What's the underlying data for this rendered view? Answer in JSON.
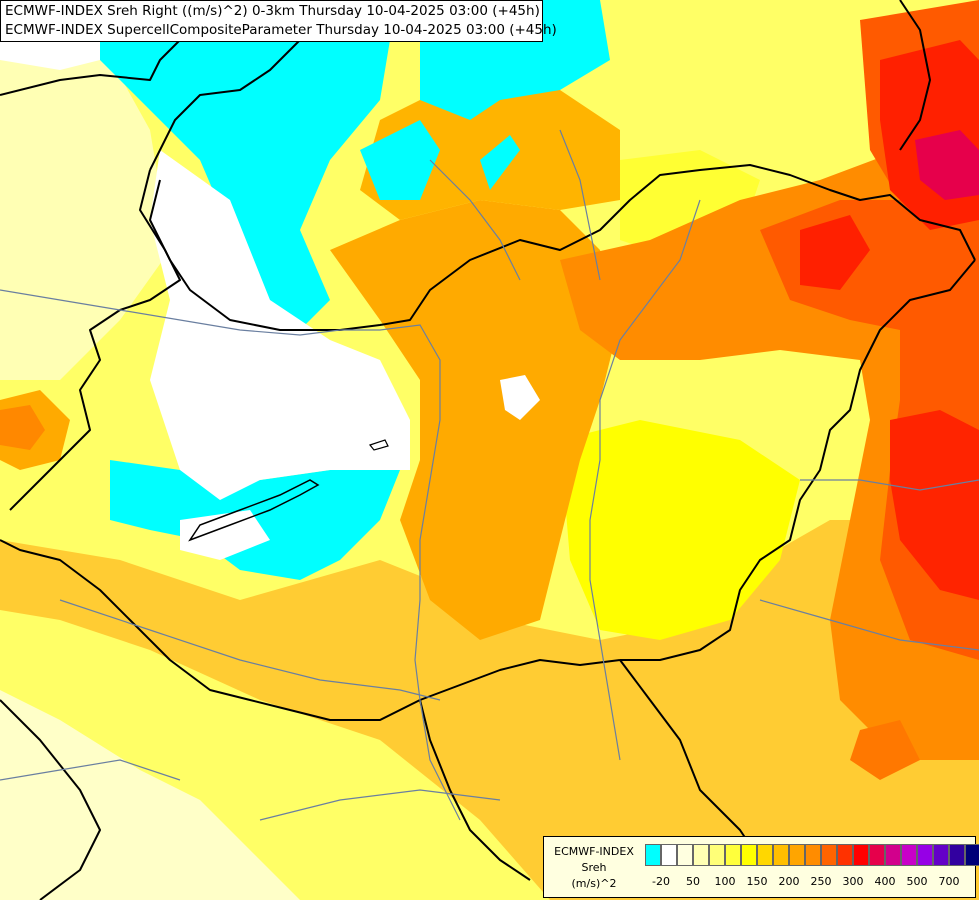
{
  "header": {
    "line1": "ECMWF-INDEX Sreh Right ((m/s)^2) 0-3km Thursday 10-04-2025 03:00 (+45h)",
    "line2": "ECMWF-INDEX SupercellCompositeParameter Thursday 10-04-2025 03:00 (+45h)"
  },
  "legend": {
    "title": "ECMWF-INDEX",
    "param": "Sreh",
    "unit": "(m/s)^2",
    "colors": [
      "#00ffff",
      "#ffffff",
      "#ffffe0",
      "#ffffb4",
      "#ffff78",
      "#ffff3c",
      "#ffff00",
      "#ffd700",
      "#ffbe00",
      "#ffa500",
      "#ff8c00",
      "#ff6400",
      "#ff3200",
      "#ff0000",
      "#e6004b",
      "#d2008c",
      "#c800c8",
      "#9600e6",
      "#6400c8",
      "#3200a0",
      "#000078"
    ],
    "tick_labels": [
      "-20",
      "50",
      "100",
      "150",
      "200",
      "250",
      "300",
      "400",
      "500",
      "700"
    ]
  },
  "colors": {
    "cyan": "#00ffff",
    "white": "#ffffff",
    "pale_yellow": "#ffffb4",
    "yellow": "#ffff00",
    "gold": "#ffd700",
    "orange": "#ffaa00",
    "dark_orange": "#ff8800",
    "red_orange": "#ff5500",
    "red": "#ff2200",
    "crimson": "#e6004b",
    "border": "#000000",
    "river": "#6a7fa0"
  }
}
